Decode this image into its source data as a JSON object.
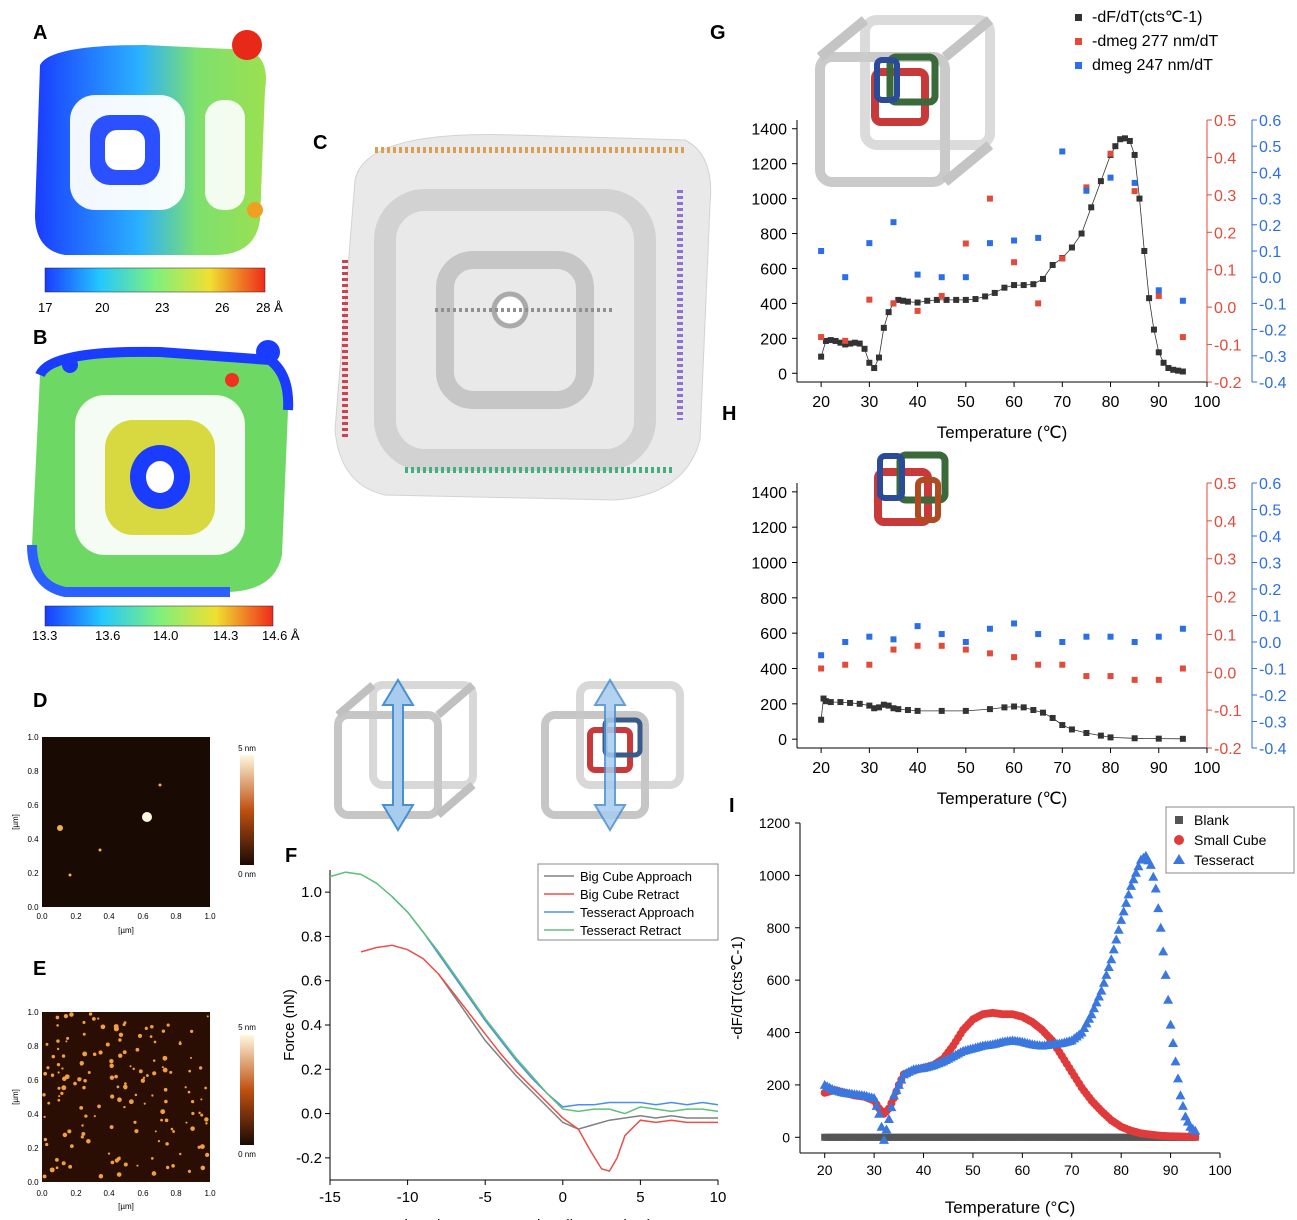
{
  "panels": {
    "A": {
      "letter": "A",
      "colorbar": {
        "ticks": [
          "17",
          "20",
          "23",
          "26",
          "28 Å"
        ],
        "colors": [
          "#1a3cff",
          "#23c8ff",
          "#7ef07e",
          "#f0e030",
          "#f02a1a"
        ]
      }
    },
    "B": {
      "letter": "B",
      "colorbar": {
        "ticks": [
          "13.3",
          "13.6",
          "14.0",
          "14.3",
          "14.6 Å"
        ],
        "colors": [
          "#1a3cff",
          "#23c8ff",
          "#7ef07e",
          "#f0e030",
          "#f02a1a"
        ]
      }
    },
    "C": {
      "letter": "C"
    },
    "D": {
      "letter": "D",
      "afm": {
        "xlabel": "[µm]",
        "ylabel": "[µm]",
        "xticks": [
          "0.0",
          "0.2",
          "0.4",
          "0.6",
          "0.8",
          "1.0"
        ],
        "yticks": [
          "0.0",
          "0.2",
          "0.4",
          "0.6",
          "0.8",
          "1.0"
        ],
        "scale_top": "5 nm",
        "scale_bottom": "0 nm"
      }
    },
    "E": {
      "letter": "E",
      "afm": {
        "xlabel": "[µm]",
        "ylabel": "[µm]",
        "xticks": [
          "0.0",
          "0.2",
          "0.4",
          "0.6",
          "0.8",
          "1.0"
        ],
        "yticks": [
          "0.0",
          "0.2",
          "0.4",
          "0.6",
          "0.8",
          "1.0"
        ],
        "scale_top": "5 nm",
        "scale_bottom": "0 nm"
      }
    },
    "F": {
      "letter": "F"
    },
    "G": {
      "letter": "G"
    },
    "H": {
      "letter": "H"
    },
    "I": {
      "letter": "I"
    }
  },
  "chart_data": [
    {
      "id": "F",
      "type": "line",
      "xlabel": "Tip-substrate seperation distance (nm)",
      "ylabel": "Force (nN)",
      "xlim": [
        -15,
        10
      ],
      "ylim": [
        -0.3,
        1.1
      ],
      "xticks": [
        -15,
        -10,
        -5,
        0,
        5,
        10
      ],
      "yticks": [
        -0.2,
        0.0,
        0.2,
        0.4,
        0.6,
        0.8,
        1.0
      ],
      "legend_position": "top-right",
      "series": [
        {
          "name": "Big Cube Approach",
          "color": "#808080",
          "x": [
            -8,
            -7,
            -6,
            -5,
            -4,
            -3,
            -2,
            -1,
            0,
            1,
            2,
            3,
            4,
            5,
            6,
            7,
            8,
            9,
            10
          ],
          "y": [
            0.63,
            0.53,
            0.43,
            0.33,
            0.25,
            0.17,
            0.1,
            0.03,
            -0.04,
            -0.07,
            -0.05,
            -0.03,
            -0.02,
            -0.01,
            -0.02,
            -0.01,
            -0.02,
            -0.02,
            -0.02
          ]
        },
        {
          "name": "Big Cube Retract",
          "color": "#e8504a",
          "x": [
            -13,
            -12,
            -11,
            -10,
            -9,
            -8,
            -7,
            -6,
            -5,
            -4,
            -3,
            -2,
            -1,
            0,
            1,
            1.8,
            2.5,
            3,
            3.5,
            4,
            5,
            6,
            7,
            8,
            9,
            10
          ],
          "y": [
            0.73,
            0.75,
            0.76,
            0.74,
            0.7,
            0.63,
            0.54,
            0.45,
            0.36,
            0.27,
            0.19,
            0.12,
            0.05,
            -0.02,
            -0.07,
            -0.17,
            -0.25,
            -0.26,
            -0.2,
            -0.1,
            -0.03,
            -0.04,
            -0.03,
            -0.04,
            -0.04,
            -0.04
          ]
        },
        {
          "name": "Tesseract Approach",
          "color": "#4a90e8",
          "x": [
            -11,
            -10,
            -9,
            -8,
            -7,
            -6,
            -5,
            -4,
            -3,
            -2,
            -1,
            0,
            1,
            2,
            3,
            4,
            5,
            6,
            7,
            8,
            9,
            10
          ],
          "y": [
            0.98,
            0.91,
            0.82,
            0.72,
            0.62,
            0.52,
            0.42,
            0.33,
            0.24,
            0.16,
            0.09,
            0.03,
            0.04,
            0.04,
            0.05,
            0.05,
            0.05,
            0.04,
            0.05,
            0.04,
            0.05,
            0.04
          ]
        },
        {
          "name": "Tesseract Retract",
          "color": "#5ec07a",
          "x": [
            -15,
            -14,
            -13,
            -12,
            -11,
            -10,
            -9,
            -8,
            -7,
            -6,
            -5,
            -4,
            -3,
            -2,
            -1,
            0,
            1,
            2,
            3,
            4,
            5,
            6,
            7,
            8,
            9,
            10
          ],
          "y": [
            1.07,
            1.09,
            1.08,
            1.04,
            0.98,
            0.91,
            0.82,
            0.73,
            0.63,
            0.53,
            0.43,
            0.34,
            0.25,
            0.17,
            0.09,
            0.02,
            0.01,
            0.02,
            0.02,
            0.0,
            0.03,
            0.02,
            0.01,
            0.02,
            0.02,
            0.01
          ]
        }
      ]
    },
    {
      "id": "G",
      "type": "scatter",
      "xlabel": "Temperature (℃)",
      "xlim": [
        15,
        100
      ],
      "xticks": [
        20,
        30,
        40,
        50,
        60,
        70,
        80,
        90,
        100
      ],
      "y1lim": [
        -50,
        1450
      ],
      "y1ticks": [
        0,
        200,
        400,
        600,
        800,
        1000,
        1200,
        1400
      ],
      "y2lim": [
        -0.2,
        0.5
      ],
      "y2ticks": [
        "-0.2",
        "-0.1",
        "0.0",
        "0.1",
        "0.2",
        "0.3",
        "0.4",
        "0.5"
      ],
      "y3lim": [
        -0.4,
        0.6
      ],
      "y3ticks": [
        "-0.4",
        "-0.3",
        "-0.2",
        "-0.1",
        "0.0",
        "0.1",
        "0.2",
        "0.3",
        "0.4",
        "0.5",
        "0.6"
      ],
      "legend_position": "top-right",
      "series": [
        {
          "name": "-dF/dT(cts℃-1)",
          "color": "#333333",
          "axis": "left",
          "x": [
            20,
            21,
            22,
            23,
            24,
            25,
            26,
            27,
            28,
            29,
            30,
            31,
            32,
            33,
            34,
            35,
            36,
            37,
            38,
            40,
            42,
            44,
            46,
            48,
            50,
            52,
            54,
            56,
            58,
            60,
            62,
            64,
            66,
            68,
            70,
            72,
            74,
            76,
            78,
            80,
            81,
            82,
            83,
            84,
            85,
            86,
            87,
            88,
            89,
            90,
            91,
            92,
            93,
            94,
            95
          ],
          "y": [
            95,
            185,
            190,
            185,
            175,
            165,
            170,
            175,
            170,
            140,
            60,
            30,
            90,
            260,
            350,
            400,
            420,
            415,
            410,
            405,
            415,
            420,
            420,
            420,
            420,
            425,
            440,
            460,
            490,
            505,
            505,
            510,
            540,
            620,
            660,
            720,
            800,
            950,
            1100,
            1250,
            1300,
            1340,
            1345,
            1330,
            1250,
            1000,
            700,
            430,
            250,
            120,
            60,
            30,
            20,
            15,
            10
          ]
        },
        {
          "name": "-dmeg 277 nm/dT",
          "color": "#e24a3a",
          "axis": "right",
          "x": [
            20,
            25,
            30,
            35,
            40,
            45,
            50,
            55,
            60,
            65,
            70,
            75,
            80,
            85,
            90,
            95
          ],
          "y": [
            -0.08,
            -0.09,
            0.02,
            0.01,
            -0.01,
            0.03,
            0.17,
            0.29,
            0.12,
            0.01,
            0.13,
            0.32,
            0.41,
            0.31,
            0.03,
            -0.08
          ]
        },
        {
          "name": "dmeg 247 nm/dT",
          "color": "#2a6ee8",
          "axis": "right-outer",
          "x": [
            20,
            25,
            30,
            35,
            40,
            45,
            50,
            55,
            60,
            65,
            70,
            75,
            80,
            85,
            90,
            95
          ],
          "y": [
            0.1,
            0.0,
            0.13,
            0.21,
            0.01,
            0.0,
            0.0,
            0.13,
            0.14,
            0.15,
            0.48,
            0.33,
            0.38,
            0.36,
            -0.05,
            -0.09
          ]
        }
      ]
    },
    {
      "id": "H",
      "type": "scatter",
      "xlabel": "Temperature (℃)",
      "xlim": [
        15,
        100
      ],
      "xticks": [
        20,
        30,
        40,
        50,
        60,
        70,
        80,
        90,
        100
      ],
      "y1lim": [
        -50,
        1450
      ],
      "y1ticks": [
        0,
        200,
        400,
        600,
        800,
        1000,
        1200,
        1400
      ],
      "y2lim": [
        -0.2,
        0.5
      ],
      "y2ticks": [
        "-0.2",
        "-0.1",
        "0.0",
        "0.1",
        "0.2",
        "0.3",
        "0.4",
        "0.5"
      ],
      "y3lim": [
        -0.4,
        0.6
      ],
      "y3ticks": [
        "-0.4",
        "-0.3",
        "-0.2",
        "-0.1",
        "0.0",
        "0.1",
        "0.2",
        "0.3",
        "0.4",
        "0.5",
        "0.6"
      ],
      "series": [
        {
          "name": "-dF/dT",
          "color": "#333333",
          "axis": "left",
          "x": [
            20,
            20.5,
            21,
            22,
            24,
            26,
            28,
            30,
            31,
            32,
            33,
            34,
            35,
            36,
            38,
            40,
            45,
            50,
            55,
            58,
            60,
            62,
            64,
            66,
            68,
            70,
            72,
            75,
            78,
            80,
            85,
            90,
            95
          ],
          "y": [
            110,
            230,
            215,
            210,
            210,
            205,
            200,
            190,
            175,
            180,
            195,
            190,
            175,
            170,
            165,
            160,
            160,
            160,
            170,
            180,
            185,
            180,
            165,
            150,
            120,
            80,
            55,
            35,
            20,
            10,
            5,
            3,
            2
          ]
        },
        {
          "name": "-dmeg 277 nm/dT",
          "color": "#e24a3a",
          "axis": "right",
          "x": [
            20,
            25,
            30,
            35,
            40,
            45,
            50,
            55,
            60,
            65,
            70,
            75,
            80,
            85,
            90,
            95
          ],
          "y": [
            0.01,
            0.02,
            0.02,
            0.06,
            0.07,
            0.07,
            0.06,
            0.05,
            0.04,
            0.02,
            0.02,
            -0.01,
            -0.01,
            -0.02,
            -0.02,
            0.01
          ]
        },
        {
          "name": "dmeg 247 nm/dT",
          "color": "#2a6ee8",
          "axis": "right-outer",
          "x": [
            20,
            25,
            30,
            35,
            40,
            45,
            50,
            55,
            60,
            65,
            70,
            75,
            80,
            85,
            90,
            95
          ],
          "y": [
            -0.05,
            0.0,
            0.02,
            0.01,
            0.06,
            0.03,
            0.0,
            0.05,
            0.07,
            0.03,
            0.0,
            0.02,
            0.02,
            0.0,
            0.02,
            0.05
          ]
        }
      ]
    },
    {
      "id": "I",
      "type": "scatter",
      "xlabel": "Temperature (°C)",
      "ylabel": "-dF/dT(cts℃-1)",
      "xlim": [
        15,
        100
      ],
      "ylim": [
        -60,
        1200
      ],
      "xticks": [
        20,
        30,
        40,
        50,
        60,
        70,
        80,
        90,
        100
      ],
      "yticks": [
        0,
        200,
        400,
        600,
        800,
        1000,
        1200
      ],
      "legend_position": "top-right",
      "series": [
        {
          "name": "Blank",
          "color": "#555555",
          "marker": "square",
          "x": [
            20,
            95
          ],
          "y": [
            0,
            0
          ]
        },
        {
          "name": "Small Cube",
          "color": "#e03a3a",
          "marker": "circle",
          "x": [
            20,
            22,
            24,
            26,
            28,
            30,
            31,
            32,
            33,
            34,
            35,
            36,
            38,
            40,
            42,
            44,
            46,
            48,
            50,
            52,
            54,
            56,
            58,
            60,
            62,
            64,
            66,
            68,
            70,
            72,
            74,
            76,
            78,
            80,
            82,
            84,
            86,
            88,
            90,
            92,
            94,
            95
          ],
          "y": [
            170,
            180,
            170,
            160,
            155,
            140,
            110,
            90,
            110,
            150,
            200,
            240,
            255,
            265,
            275,
            300,
            350,
            410,
            450,
            470,
            475,
            470,
            470,
            460,
            440,
            410,
            370,
            310,
            250,
            190,
            140,
            100,
            65,
            40,
            25,
            15,
            10,
            6,
            4,
            3,
            2,
            2
          ]
        },
        {
          "name": "Tesseract",
          "color": "#3a78e0",
          "marker": "triangle",
          "x": [
            20,
            22,
            24,
            26,
            28,
            30,
            31,
            32,
            33,
            34,
            35,
            36,
            38,
            40,
            42,
            44,
            46,
            48,
            50,
            52,
            54,
            56,
            58,
            60,
            62,
            64,
            66,
            68,
            70,
            72,
            74,
            76,
            78,
            80,
            82,
            84,
            85,
            86,
            87,
            88,
            89,
            90,
            91,
            92,
            93,
            94,
            95
          ],
          "y": [
            200,
            180,
            170,
            165,
            160,
            150,
            90,
            -10,
            70,
            160,
            200,
            240,
            260,
            265,
            275,
            290,
            310,
            330,
            340,
            350,
            355,
            365,
            370,
            365,
            355,
            350,
            355,
            360,
            370,
            400,
            470,
            560,
            680,
            830,
            960,
            1060,
            1075,
            1040,
            950,
            800,
            620,
            430,
            290,
            160,
            80,
            40,
            25
          ]
        }
      ]
    }
  ]
}
